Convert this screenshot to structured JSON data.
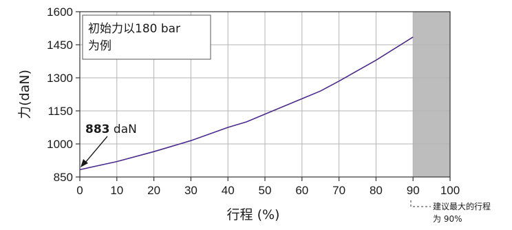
{
  "chart_data": {
    "type": "line",
    "xlabel": "行程 (%)",
    "ylabel": "力(daN)",
    "xlim": [
      0,
      100
    ],
    "ylim": [
      850,
      1600
    ],
    "x_ticks": [
      "0",
      "10",
      "20",
      "30",
      "40",
      "50",
      "60",
      "70",
      "80",
      "90",
      "100"
    ],
    "y_ticks": [
      "850",
      "1000",
      "1150",
      "1300",
      "1450",
      "1600"
    ],
    "grid": true,
    "series": [
      {
        "color": "#4a2a8c",
        "x": [
          0,
          10,
          20,
          30,
          40,
          45,
          50,
          60,
          65,
          70,
          80,
          90
        ],
        "y": [
          883,
          920,
          965,
          1015,
          1075,
          1100,
          1135,
          1205,
          1240,
          1285,
          1380,
          1485
        ]
      }
    ],
    "shaded_region": {
      "x_from": 90,
      "x_to": 100,
      "color": "#bdbdbd"
    },
    "annotations": {
      "box_line1": "初始力以180 bar",
      "box_line2": "为例",
      "start_value_bold": "883",
      "start_value_unit": " daN",
      "limit_note_line1": "建议最大的行程",
      "limit_note_line2": "为 90%"
    }
  }
}
